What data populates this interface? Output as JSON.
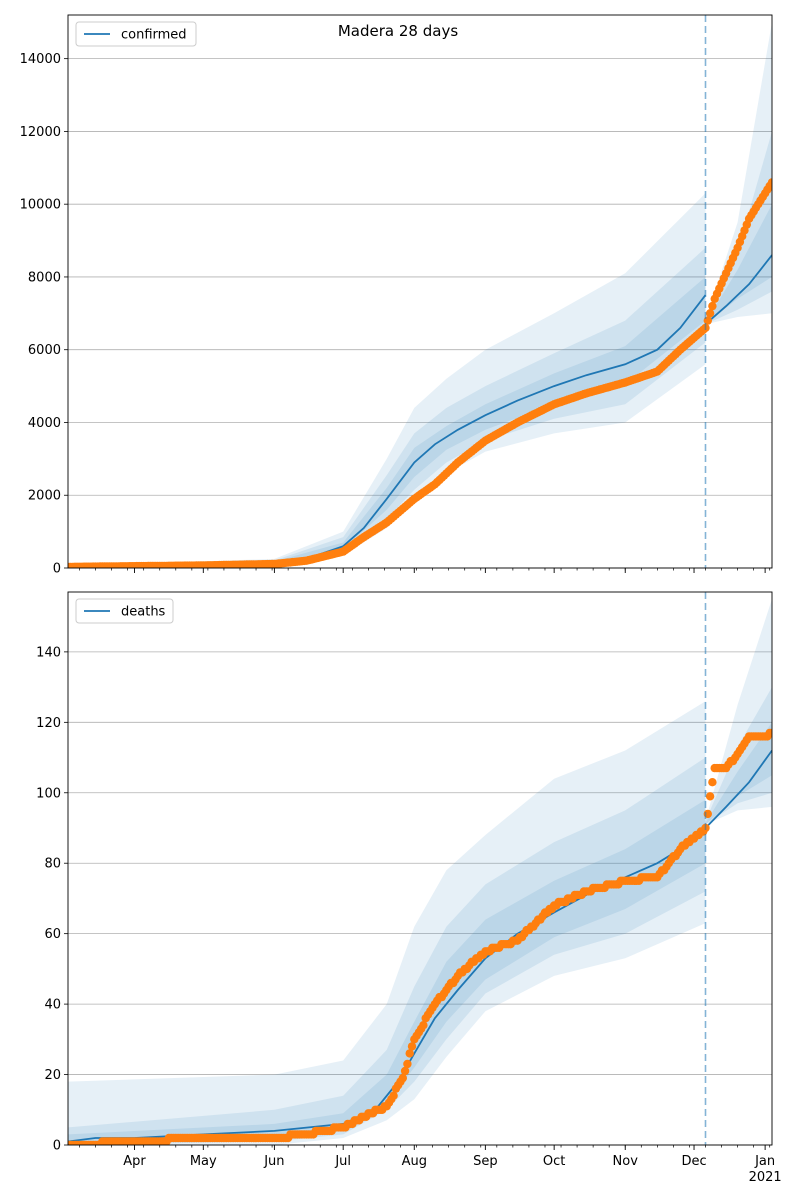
{
  "figure": {
    "title": "Madera 28 days"
  },
  "colors": {
    "model": "#1f77b4",
    "observed": "#ff7f0e",
    "band": "#1f77b4",
    "grid": "#b0b0b0"
  },
  "x_axis": {
    "month_labels": [
      "Apr",
      "May",
      "Jun",
      "Jul",
      "Aug",
      "Sep",
      "Oct",
      "Nov",
      "Dec",
      "Jan"
    ],
    "year_label": "2021"
  },
  "chart_data": [
    {
      "type": "line",
      "legend": "confirmed",
      "legend_position": "top-left",
      "grid": "horizontal",
      "xlim": [
        "2020-03-03",
        "2021-01-04"
      ],
      "ylim": [
        0,
        15200
      ],
      "yticks": [
        0,
        2000,
        4000,
        6000,
        8000,
        10000,
        12000,
        14000
      ],
      "forecast_start": "2020-12-06",
      "series": [
        {
          "name": "confirmed",
          "style": "line",
          "x": [
            "2020-03-03",
            "2020-04-01",
            "2020-05-01",
            "2020-06-01",
            "2020-06-15",
            "2020-07-01",
            "2020-07-10",
            "2020-07-20",
            "2020-08-01",
            "2020-08-10",
            "2020-08-20",
            "2020-09-01",
            "2020-09-15",
            "2020-10-01",
            "2020-10-15",
            "2020-11-01",
            "2020-11-15",
            "2020-11-25",
            "2020-12-06",
            "2020-12-06",
            "2020-12-15",
            "2020-12-25",
            "2021-01-04"
          ],
          "y": [
            20,
            40,
            70,
            150,
            250,
            600,
            1100,
            1900,
            2900,
            3400,
            3800,
            4200,
            4600,
            5000,
            5300,
            5600,
            6000,
            6600,
            7500,
            6700,
            7200,
            7800,
            8600
          ]
        },
        {
          "name": "observed",
          "style": "markers",
          "x": [
            "2020-03-03",
            "2020-04-01",
            "2020-05-01",
            "2020-06-01",
            "2020-06-15",
            "2020-07-01",
            "2020-07-10",
            "2020-07-20",
            "2020-08-01",
            "2020-08-10",
            "2020-08-20",
            "2020-09-01",
            "2020-09-15",
            "2020-10-01",
            "2020-10-15",
            "2020-11-01",
            "2020-11-15",
            "2020-11-25",
            "2020-12-06",
            "2020-12-10",
            "2020-12-15",
            "2020-12-20",
            "2020-12-25",
            "2021-01-01",
            "2021-01-04"
          ],
          "y": [
            30,
            50,
            70,
            110,
            200,
            450,
            850,
            1250,
            1900,
            2300,
            2900,
            3500,
            4000,
            4500,
            4800,
            5100,
            5400,
            6000,
            6600,
            7400,
            8100,
            8800,
            9600,
            10300,
            10600
          ]
        }
      ],
      "bands": [
        {
          "x": [
            "2020-03-03",
            "2020-06-01",
            "2020-07-01",
            "2020-07-20",
            "2020-08-01",
            "2020-08-15",
            "2020-09-01",
            "2020-10-01",
            "2020-11-01",
            "2020-12-06",
            "2020-12-06",
            "2020-12-20",
            "2021-01-04"
          ],
          "lower": [
            0,
            80,
            350,
            1100,
            1800,
            2600,
            3200,
            3700,
            4000,
            5600,
            6700,
            6900,
            7000
          ],
          "upper": [
            60,
            250,
            1000,
            3000,
            4400,
            5200,
            6000,
            7000,
            8100,
            10300,
            6800,
            9500,
            15000
          ]
        },
        {
          "x": [
            "2020-03-03",
            "2020-06-01",
            "2020-07-01",
            "2020-07-20",
            "2020-08-01",
            "2020-08-15",
            "2020-09-01",
            "2020-10-01",
            "2020-11-01",
            "2020-12-06",
            "2020-12-06",
            "2020-12-20",
            "2021-01-04"
          ],
          "lower": [
            0,
            100,
            450,
            1350,
            2150,
            2900,
            3500,
            4100,
            4500,
            6200,
            6700,
            7100,
            7600
          ],
          "upper": [
            45,
            210,
            850,
            2550,
            3700,
            4400,
            5000,
            5900,
            6800,
            8800,
            6800,
            8700,
            12000
          ]
        },
        {
          "x": [
            "2020-03-03",
            "2020-06-01",
            "2020-07-01",
            "2020-07-20",
            "2020-08-01",
            "2020-08-15",
            "2020-09-01",
            "2020-10-01",
            "2020-11-01",
            "2020-12-06",
            "2020-12-06",
            "2020-12-20",
            "2021-01-04"
          ],
          "lower": [
            5,
            120,
            520,
            1600,
            2500,
            3250,
            3800,
            4500,
            5050,
            6800,
            6700,
            7400,
            8000
          ],
          "upper": [
            35,
            180,
            700,
            2200,
            3300,
            3900,
            4500,
            5350,
            6100,
            8000,
            6750,
            8200,
            10000
          ]
        }
      ]
    },
    {
      "type": "line",
      "legend": "deaths",
      "legend_position": "top-left",
      "grid": "horizontal",
      "xlim": [
        "2020-03-03",
        "2021-01-04"
      ],
      "ylim": [
        0,
        157
      ],
      "yticks": [
        0,
        20,
        40,
        60,
        80,
        100,
        120,
        140
      ],
      "forecast_start": "2020-12-06",
      "series": [
        {
          "name": "deaths",
          "style": "line",
          "x": [
            "2020-03-03",
            "2020-03-15",
            "2020-04-01",
            "2020-05-01",
            "2020-06-01",
            "2020-07-01",
            "2020-07-15",
            "2020-07-25",
            "2020-08-01",
            "2020-08-10",
            "2020-08-20",
            "2020-09-01",
            "2020-09-15",
            "2020-10-01",
            "2020-10-15",
            "2020-11-01",
            "2020-11-15",
            "2020-11-25",
            "2020-12-06",
            "2020-12-06",
            "2020-12-15",
            "2020-12-25",
            "2021-01-04"
          ],
          "y": [
            1,
            2,
            2,
            3,
            4,
            6,
            10,
            18,
            26,
            36,
            44,
            53,
            60,
            66,
            71,
            76,
            80,
            84,
            90,
            90,
            96,
            103,
            112
          ]
        },
        {
          "name": "observed",
          "style": "markers",
          "x": [
            "2020-03-03",
            "2020-04-01",
            "2020-05-01",
            "2020-06-01",
            "2020-06-15",
            "2020-07-01",
            "2020-07-10",
            "2020-07-20",
            "2020-07-27",
            "2020-08-01",
            "2020-08-10",
            "2020-08-20",
            "2020-09-01",
            "2020-09-15",
            "2020-10-01",
            "2020-10-15",
            "2020-11-01",
            "2020-11-15",
            "2020-11-25",
            "2020-12-06",
            "2020-12-10",
            "2020-12-15",
            "2020-12-20",
            "2020-12-25",
            "2021-01-01",
            "2021-01-04"
          ],
          "y": [
            0,
            1,
            2,
            2,
            3,
            5,
            8,
            11,
            19,
            30,
            40,
            48,
            55,
            58,
            68,
            72,
            75,
            76,
            84,
            90,
            107,
            107,
            111,
            116,
            116,
            117
          ]
        }
      ],
      "bands": [
        {
          "x": [
            "2020-03-03",
            "2020-06-01",
            "2020-07-01",
            "2020-07-20",
            "2020-08-01",
            "2020-08-15",
            "2020-09-01",
            "2020-10-01",
            "2020-11-01",
            "2020-12-06",
            "2020-12-06",
            "2020-12-20",
            "2021-01-04"
          ],
          "lower": [
            0,
            0,
            2,
            7,
            13,
            25,
            38,
            48,
            53,
            63,
            91,
            95,
            96
          ],
          "upper": [
            18,
            20,
            24,
            40,
            62,
            78,
            88,
            104,
            112,
            126,
            92,
            125,
            155
          ]
        },
        {
          "x": [
            "2020-03-03",
            "2020-06-01",
            "2020-07-01",
            "2020-07-20",
            "2020-08-01",
            "2020-08-15",
            "2020-09-01",
            "2020-10-01",
            "2020-11-01",
            "2020-12-06",
            "2020-12-06",
            "2020-12-20",
            "2021-01-04"
          ],
          "lower": [
            0,
            1,
            3,
            10,
            18,
            30,
            43,
            54,
            60,
            72,
            91,
            97,
            100
          ],
          "upper": [
            5,
            10,
            14,
            27,
            45,
            62,
            74,
            86,
            95,
            110,
            92,
            113,
            130
          ]
        },
        {
          "x": [
            "2020-03-03",
            "2020-06-01",
            "2020-07-01",
            "2020-07-20",
            "2020-08-01",
            "2020-08-15",
            "2020-09-01",
            "2020-10-01",
            "2020-11-01",
            "2020-12-06",
            "2020-12-06",
            "2020-12-20",
            "2021-01-04"
          ],
          "lower": [
            0,
            2,
            4,
            12,
            22,
            35,
            47,
            59,
            67,
            80,
            91,
            99,
            105
          ],
          "upper": [
            3,
            6,
            9,
            20,
            35,
            52,
            64,
            75,
            84,
            98,
            91.5,
            106,
            120
          ]
        }
      ]
    }
  ]
}
